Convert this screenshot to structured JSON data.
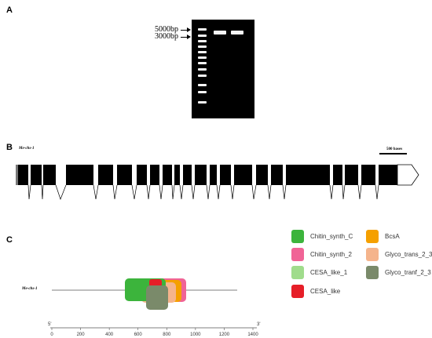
{
  "panels": {
    "a": "A",
    "b": "B",
    "c": "C"
  },
  "gel": {
    "marker_upper": "5000bp",
    "marker_lower": "3000bp"
  },
  "gene_model": {
    "gene_name": "Me-chs-1",
    "scale_label": "500 bases"
  },
  "domains": {
    "protein_name": "Me-chs-1",
    "axis_start_label": "5'",
    "axis_end_label": "3'",
    "axis_ticks": [
      "0",
      "200",
      "400",
      "600",
      "800",
      "1000",
      "1200",
      "1400"
    ],
    "legend": [
      {
        "label": "Chitin_synth_C",
        "color": "#3cb43c"
      },
      {
        "label": "BcsA",
        "color": "#f5a000"
      },
      {
        "label": "Chitin_synth_2",
        "color": "#f06496"
      },
      {
        "label": "Glyco_trans_2_3",
        "color": "#f5b48c"
      },
      {
        "label": "CESA_like_1",
        "color": "#a0dc8c"
      },
      {
        "label": "Glyco_tranf_2_3",
        "color": "#7a8a6a"
      },
      {
        "label": "CESA_like",
        "color": "#e61e28"
      }
    ]
  }
}
